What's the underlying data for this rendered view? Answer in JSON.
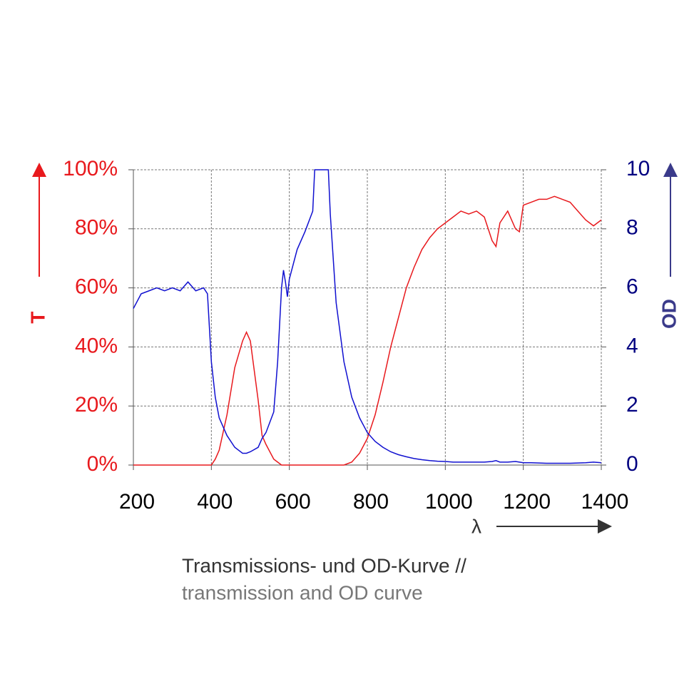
{
  "chart_data": {
    "type": "line",
    "x": [
      200,
      220,
      240,
      260,
      280,
      300,
      320,
      340,
      360,
      380,
      390,
      400,
      410,
      420,
      440,
      460,
      480,
      490,
      500,
      520,
      530,
      540,
      560,
      570,
      580,
      585,
      590,
      595,
      600,
      620,
      640,
      660,
      665,
      700,
      705,
      720,
      740,
      760,
      780,
      800,
      820,
      840,
      860,
      880,
      900,
      920,
      940,
      960,
      980,
      1000,
      1020,
      1040,
      1060,
      1080,
      1100,
      1120,
      1130,
      1140,
      1160,
      1180,
      1190,
      1200,
      1220,
      1240,
      1260,
      1280,
      1300,
      1320,
      1340,
      1360,
      1380,
      1400
    ],
    "series": [
      {
        "name": "T",
        "color": "#e8191d",
        "values": [
          0,
          0,
          0,
          0,
          0,
          0,
          0,
          0,
          0,
          0,
          0,
          0,
          2,
          5,
          17,
          33,
          42,
          45,
          42,
          22,
          10,
          7,
          2,
          1,
          0,
          0,
          0,
          0,
          0,
          0,
          0,
          0,
          0,
          0,
          0,
          0,
          0,
          1,
          4,
          9,
          17,
          28,
          40,
          50,
          60,
          67,
          73,
          77,
          80,
          82,
          84,
          86,
          85,
          86,
          84,
          76,
          74,
          82,
          86,
          80,
          79,
          88,
          89,
          90,
          90,
          91,
          90,
          89,
          86,
          83,
          81,
          83
        ]
      },
      {
        "name": "OD",
        "color": "#1010d0",
        "axis": "y2",
        "values": [
          5.3,
          5.8,
          5.9,
          6.0,
          5.9,
          6.0,
          5.9,
          6.2,
          5.9,
          6.0,
          5.8,
          3.5,
          2.3,
          1.6,
          1.0,
          0.6,
          0.4,
          0.4,
          0.45,
          0.6,
          0.9,
          1.1,
          1.8,
          3.5,
          6.0,
          6.6,
          6.2,
          5.7,
          6.3,
          7.3,
          7.9,
          8.6,
          10,
          10,
          8.5,
          5.5,
          3.5,
          2.3,
          1.6,
          1.1,
          0.8,
          0.6,
          0.45,
          0.35,
          0.28,
          0.22,
          0.18,
          0.15,
          0.13,
          0.12,
          0.1,
          0.1,
          0.1,
          0.1,
          0.1,
          0.12,
          0.15,
          0.1,
          0.1,
          0.12,
          0.1,
          0.08,
          0.08,
          0.07,
          0.06,
          0.06,
          0.06,
          0.06,
          0.07,
          0.08,
          0.1,
          0.08
        ]
      }
    ],
    "xlim": [
      200,
      1400
    ],
    "xticks": [
      200,
      400,
      600,
      800,
      1000,
      1200,
      1400
    ],
    "ylim": [
      0,
      100
    ],
    "yticks": [
      {
        "value": 0,
        "label": "0%"
      },
      {
        "value": 20,
        "label": "20%"
      },
      {
        "value": 40,
        "label": "40%"
      },
      {
        "value": 60,
        "label": "60%"
      },
      {
        "value": 80,
        "label": "80%"
      },
      {
        "value": 100,
        "label": "100%"
      }
    ],
    "y2lim": [
      0,
      10
    ],
    "y2ticks": [
      0,
      2,
      4,
      6,
      8,
      10
    ],
    "ylabel": "T",
    "y2label": "OD",
    "xlabel": "λ",
    "grid": true,
    "caption": [
      "Transmissions- und OD-Kurve //",
      "transmission and OD curve"
    ]
  }
}
